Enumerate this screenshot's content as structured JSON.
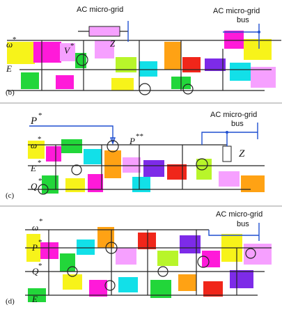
{
  "colors": {
    "bus": "#1f4fd1",
    "wire": "#222222",
    "magenta": "#ff1ad9",
    "pink": "#f6a0ff",
    "yellow": "#f7f31a",
    "green": "#22d63a",
    "cyan": "#12e0e8",
    "orange": "#ffa214",
    "red": "#f0261a",
    "purple": "#7d2be8",
    "lime": "#b8f52a",
    "blue": "#2f5ce6"
  },
  "panel_b": {
    "bus_label_1": "AC micro-grid",
    "bus_label_2a": "AC micro-grid",
    "bus_label_2b": "bus",
    "omega": "ω",
    "omega_sup": "*",
    "v_label": "V",
    "v_sup": "*",
    "z_label": "Z",
    "e_label": "E",
    "panel_tag": "(b)"
  },
  "panel_c": {
    "p_label": "P",
    "p_sup": "*",
    "pp_label": "P",
    "pp_sup": "**",
    "bus_label_a": "AC micro-grid",
    "bus_label_b": "bus",
    "omega": "ω",
    "omega_sup": "*",
    "e_label": "E",
    "e_sup": "*",
    "q_label": "Q",
    "q_sup": "*",
    "z_label": "Z",
    "panel_tag": "(c)"
  },
  "panel_d": {
    "bus_label_a": "AC micro-grid",
    "bus_label_b": "bus",
    "omega": "ω",
    "omega_sup": "*",
    "p_label": "P",
    "p_sup": "*",
    "q_label": "Q",
    "q_sup": "*",
    "e_label": "E",
    "panel_tag": "(d)"
  }
}
